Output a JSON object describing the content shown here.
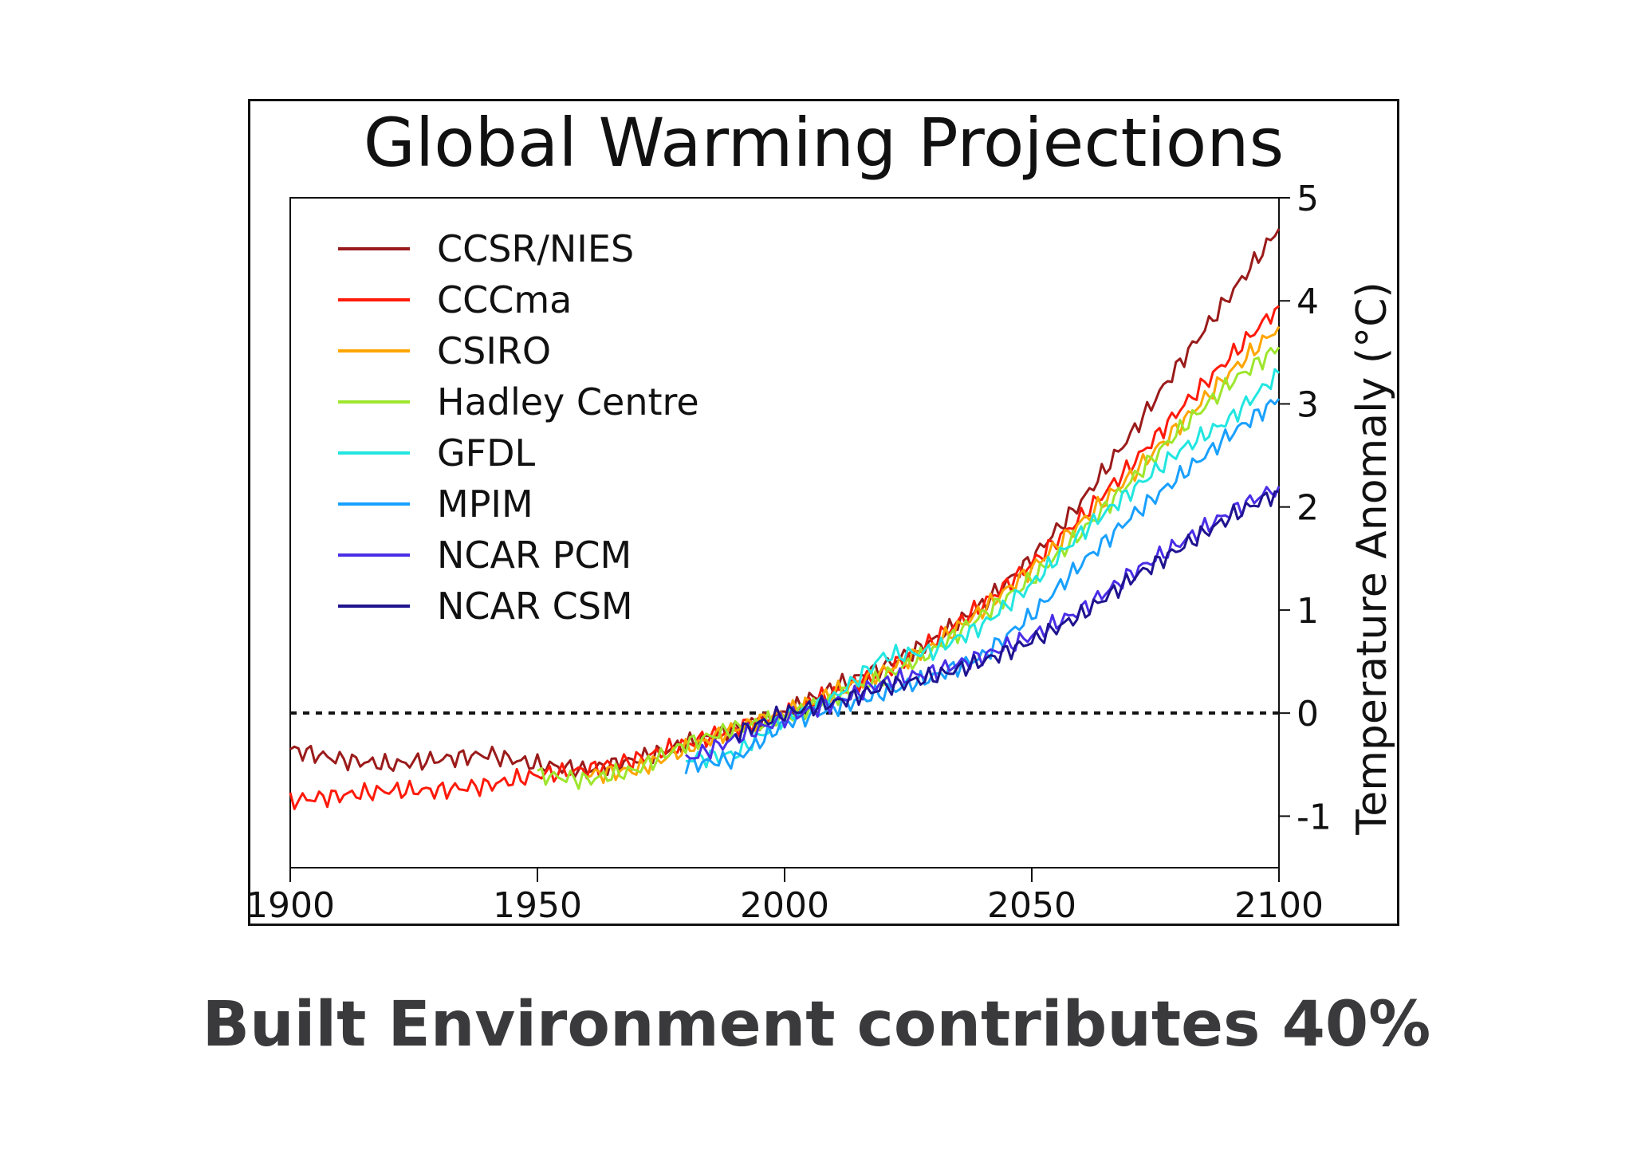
{
  "caption": "Built Environment contributes 40%",
  "chart_data": {
    "type": "line",
    "title": "Global Warming Projections",
    "xlabel": "",
    "ylabel": "Temperature Anomaly (°C)",
    "xlim": [
      1900,
      2100
    ],
    "ylim": [
      -1.5,
      5
    ],
    "x_ticks": [
      1900,
      1950,
      2000,
      2050,
      2100
    ],
    "y_ticks": [
      -1,
      0,
      1,
      2,
      3,
      4,
      5
    ],
    "y_axis_side": "right",
    "reference_line": {
      "y": 0,
      "style": "dotted"
    },
    "legend_position": "top-left",
    "series": [
      {
        "name": "CCSR/NIES",
        "color": "#9b1b1b",
        "x": [
          1900,
          1910,
          1920,
          1930,
          1940,
          1950,
          1960,
          1970,
          1980,
          1990,
          2000,
          2010,
          2020,
          2030,
          2040,
          2050,
          2060,
          2070,
          2080,
          2090,
          2100
        ],
        "y": [
          -0.35,
          -0.45,
          -0.5,
          -0.45,
          -0.4,
          -0.5,
          -0.55,
          -0.45,
          -0.3,
          -0.15,
          0.0,
          0.25,
          0.45,
          0.7,
          1.05,
          1.5,
          2.05,
          2.7,
          3.4,
          4.05,
          4.7
        ]
      },
      {
        "name": "CCCma",
        "color": "#ff1a0a",
        "x": [
          1900,
          1910,
          1920,
          1930,
          1940,
          1950,
          1960,
          1970,
          1980,
          1990,
          2000,
          2010,
          2020,
          2030,
          2040,
          2050,
          2060,
          2070,
          2080,
          2090,
          2100
        ],
        "y": [
          -0.85,
          -0.8,
          -0.75,
          -0.75,
          -0.7,
          -0.6,
          -0.55,
          -0.45,
          -0.3,
          -0.15,
          0.0,
          0.2,
          0.4,
          0.7,
          1.05,
          1.45,
          1.9,
          2.4,
          2.95,
          3.45,
          3.95
        ]
      },
      {
        "name": "CSIRO",
        "color": "#ffa500",
        "x": [
          1960,
          1970,
          1980,
          1990,
          2000,
          2010,
          2020,
          2030,
          2040,
          2050,
          2060,
          2070,
          2080,
          2090,
          2100
        ],
        "y": [
          -0.6,
          -0.55,
          -0.35,
          -0.15,
          0.0,
          0.2,
          0.4,
          0.65,
          1.0,
          1.4,
          1.85,
          2.3,
          2.8,
          3.3,
          3.75
        ]
      },
      {
        "name": "Hadley Centre",
        "color": "#9ee62e",
        "x": [
          1950,
          1960,
          1970,
          1980,
          1990,
          2000,
          2010,
          2020,
          2030,
          2040,
          2050,
          2060,
          2070,
          2080,
          2090,
          2100
        ],
        "y": [
          -0.6,
          -0.65,
          -0.55,
          -0.3,
          -0.15,
          -0.05,
          0.15,
          0.35,
          0.6,
          0.95,
          1.3,
          1.75,
          2.25,
          2.75,
          3.2,
          3.55
        ]
      },
      {
        "name": "GFDL",
        "color": "#22e6e0",
        "x": [
          1980,
          1990,
          2000,
          2010,
          2020,
          2030,
          2040,
          2050,
          2060,
          2070,
          2080,
          2090,
          2100
        ],
        "y": [
          -0.45,
          -0.4,
          -0.05,
          0.15,
          0.55,
          0.6,
          0.85,
          1.25,
          1.75,
          2.15,
          2.55,
          2.85,
          3.3
        ]
      },
      {
        "name": "MPIM",
        "color": "#1aa0ff",
        "x": [
          1980,
          1990,
          2000,
          2010,
          2020,
          2030,
          2040,
          2050,
          2060,
          2070,
          2080,
          2090,
          2100
        ],
        "y": [
          -0.5,
          -0.45,
          -0.1,
          0.05,
          0.2,
          0.35,
          0.55,
          0.95,
          1.45,
          1.9,
          2.3,
          2.7,
          3.05
        ]
      },
      {
        "name": "NCAR PCM",
        "color": "#4a2ee6",
        "x": [
          1980,
          1990,
          2000,
          2010,
          2020,
          2030,
          2040,
          2050,
          2060,
          2070,
          2080,
          2090,
          2100
        ],
        "y": [
          -0.45,
          -0.25,
          -0.05,
          0.1,
          0.3,
          0.4,
          0.55,
          0.75,
          1.0,
          1.35,
          1.65,
          1.95,
          2.2
        ]
      },
      {
        "name": "NCAR CSM",
        "color": "#1f138f",
        "x": [
          1990,
          2000,
          2010,
          2020,
          2030,
          2040,
          2050,
          2060,
          2070,
          2080,
          2090,
          2100
        ],
        "y": [
          -0.2,
          0.0,
          0.1,
          0.25,
          0.35,
          0.5,
          0.7,
          0.95,
          1.3,
          1.6,
          1.9,
          2.15
        ]
      }
    ]
  }
}
